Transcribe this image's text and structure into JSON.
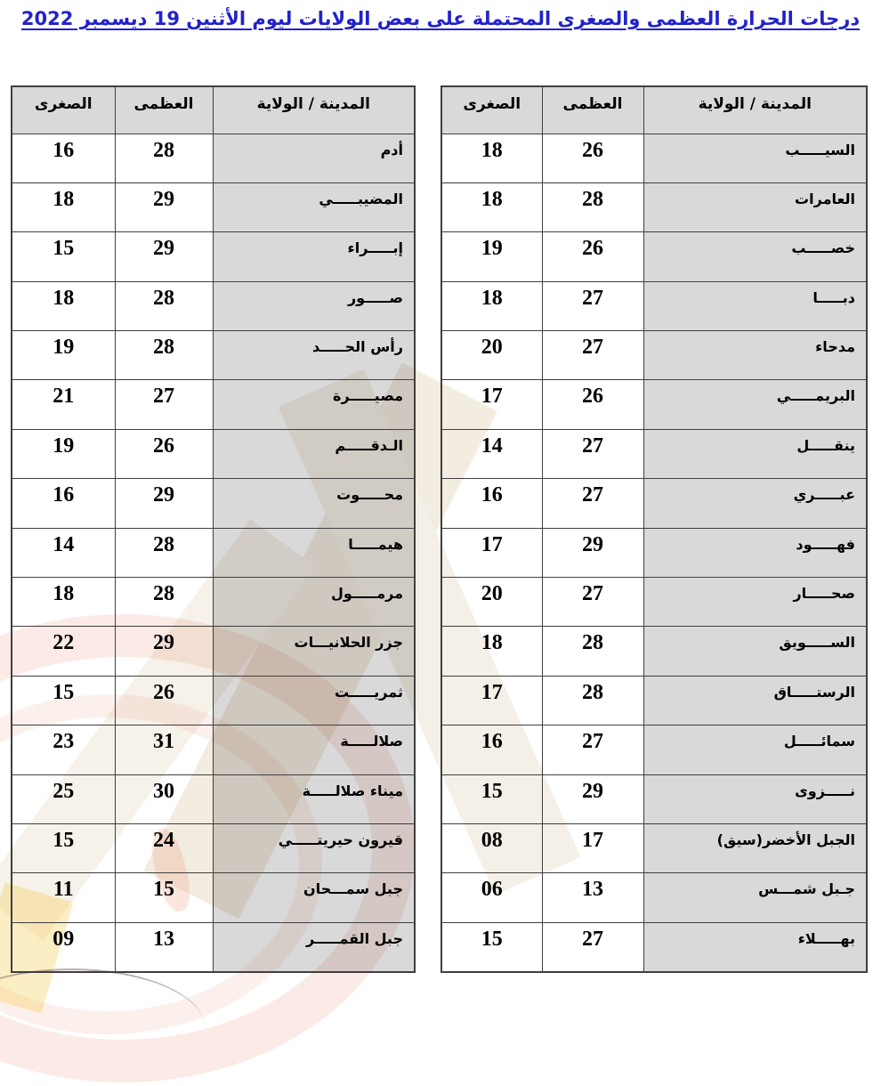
{
  "title": "درجات الحرارة العظمى والصغرى المحتملة على بعض الولايات ليوم الأثنين 19 ديسمبر 2022",
  "columns": {
    "city": "المدينة / الولاية",
    "max": "العظمى",
    "min": "الصغرى"
  },
  "tables": [
    {
      "side": "right",
      "rows": [
        {
          "city": "السيـــــب",
          "max": "26",
          "min": "18"
        },
        {
          "city": "العامرات",
          "max": "28",
          "min": "18"
        },
        {
          "city": "خصـــــب",
          "max": "26",
          "min": "19"
        },
        {
          "city": "دبـــــا",
          "max": "27",
          "min": "18"
        },
        {
          "city": "مدحاء",
          "max": "27",
          "min": "20"
        },
        {
          "city": "البريمـــــي",
          "max": "26",
          "min": "17"
        },
        {
          "city": "ينقـــــل",
          "max": "27",
          "min": "14"
        },
        {
          "city": "عبـــــري",
          "max": "27",
          "min": "16"
        },
        {
          "city": "فهـــــود",
          "max": "29",
          "min": "17"
        },
        {
          "city": "صحـــــار",
          "max": "27",
          "min": "20"
        },
        {
          "city": "الســـــويق",
          "max": "28",
          "min": "18"
        },
        {
          "city": "الرستـــــاق",
          "max": "28",
          "min": "17"
        },
        {
          "city": "سمائـــــل",
          "max": "27",
          "min": "16"
        },
        {
          "city": "نـــــزوى",
          "max": "29",
          "min": "15"
        },
        {
          "city": "الجبل الأخضر(سيق)",
          "max": "17",
          "min": "08"
        },
        {
          "city": "جـبل شمـــس",
          "max": "13",
          "min": "06"
        },
        {
          "city": "بهـــــلاء",
          "max": "27",
          "min": "15"
        }
      ]
    },
    {
      "side": "left",
      "rows": [
        {
          "city": "أدم",
          "max": "28",
          "min": "16"
        },
        {
          "city": "المضيبـــــي",
          "max": "29",
          "min": "18"
        },
        {
          "city": "إبـــــراء",
          "max": "29",
          "min": "15"
        },
        {
          "city": "صـــــور",
          "max": "28",
          "min": "18"
        },
        {
          "city": "رأس الحـــــد",
          "max": "28",
          "min": "19"
        },
        {
          "city": "مصيـــــرة",
          "max": "27",
          "min": "21"
        },
        {
          "city": "الـدقـــــم",
          "max": "26",
          "min": "19"
        },
        {
          "city": "محـــــوت",
          "max": "29",
          "min": "16"
        },
        {
          "city": "هيمـــــا",
          "max": "28",
          "min": "14"
        },
        {
          "city": "مرمـــــول",
          "max": "28",
          "min": "18"
        },
        {
          "city": "جزر الحلانيـــات",
          "max": "29",
          "min": "22"
        },
        {
          "city": "ثمريـــــت",
          "max": "26",
          "min": "15"
        },
        {
          "city": "صلالـــــة",
          "max": "31",
          "min": "23"
        },
        {
          "city": "ميناء صلالـــــة",
          "max": "30",
          "min": "25"
        },
        {
          "city": "قيرون حيريتـــــي",
          "max": "24",
          "min": "15"
        },
        {
          "city": "جبل سمـــحان",
          "max": "15",
          "min": "11"
        },
        {
          "city": "جبل القمـــــر",
          "max": "13",
          "min": "09"
        }
      ]
    }
  ],
  "colors": {
    "title_blue": "#2222cc",
    "cell_gray": "#d9d9d9",
    "border": "#3f3f3f",
    "watermark_salmon": "#e26a46",
    "watermark_beige": "#f2ece1",
    "watermark_yellow": "#f4c83c"
  }
}
